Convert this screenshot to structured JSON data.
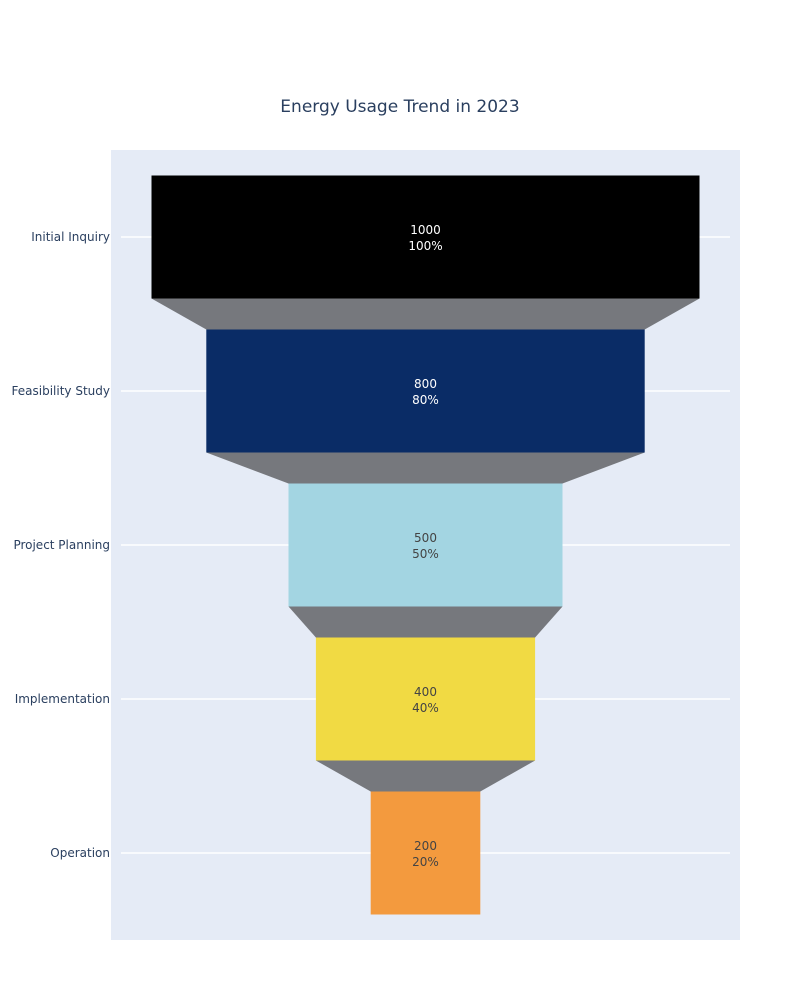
{
  "chart_data": {
    "type": "funnel",
    "title": "Energy Usage Trend in 2023",
    "categories": [
      "Initial Inquiry",
      "Feasibility Study",
      "Project Planning",
      "Implementation",
      "Operation"
    ],
    "values": [
      1000,
      800,
      500,
      400,
      200
    ],
    "percent_of_initial": [
      "100%",
      "80%",
      "50%",
      "40%",
      "20%"
    ],
    "colors": [
      "#000000",
      "#0a2c66",
      "#a3d5e2",
      "#f1da43",
      "#f39a3e"
    ],
    "label_colors": [
      "#ffffff",
      "#ffffff",
      "#444444",
      "#444444",
      "#444444"
    ],
    "connector_color": "#76787d",
    "plot_background": "#e5ebf6",
    "grid": true
  }
}
